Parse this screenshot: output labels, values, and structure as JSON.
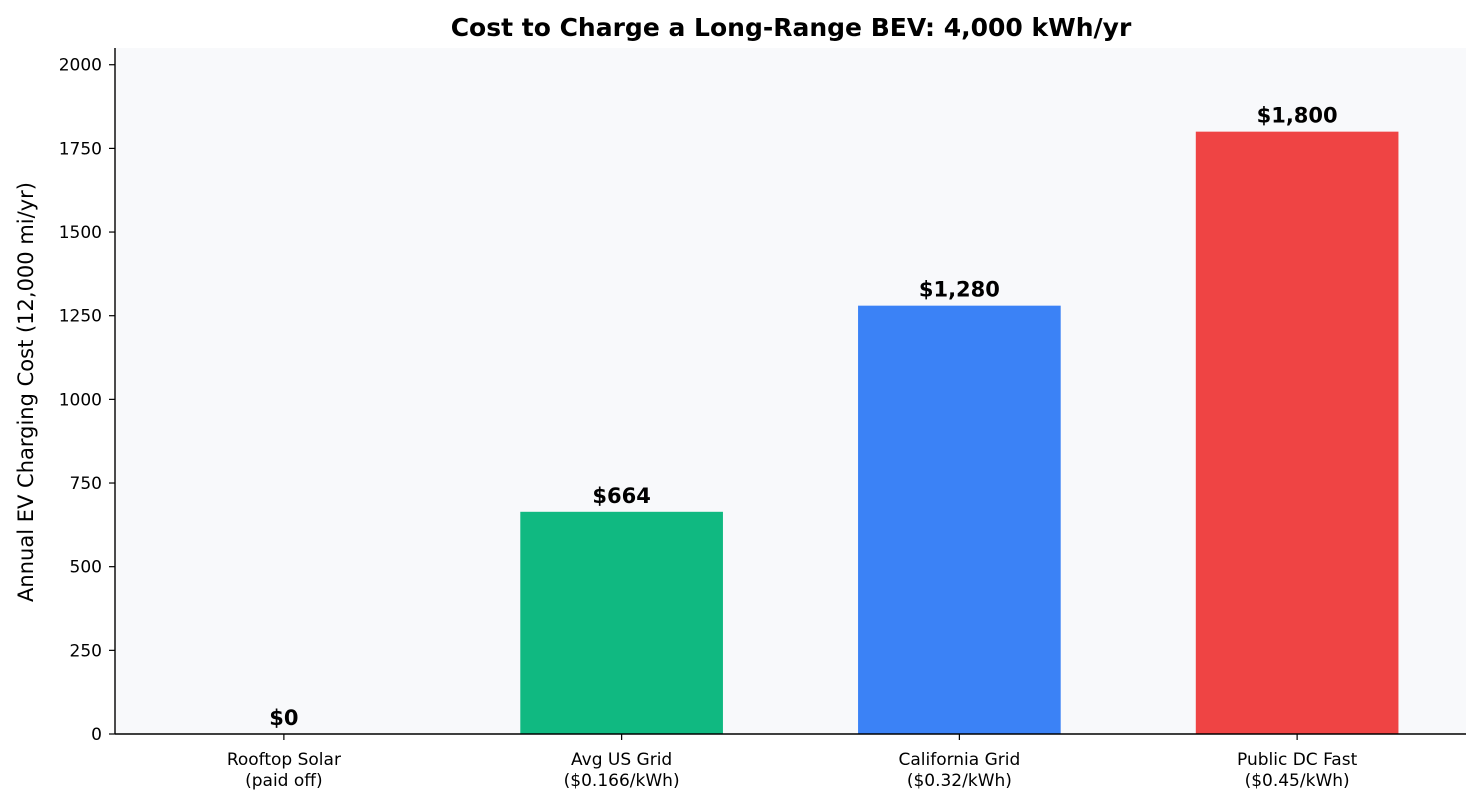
{
  "chart_data": {
    "type": "bar",
    "title": "Cost to Charge a Long-Range BEV: 4,000 kWh/yr",
    "xlabel": "",
    "ylabel": "Annual EV Charging Cost (12,000 mi/yr)",
    "categories": [
      [
        "Rooftop Solar",
        "(paid off)"
      ],
      [
        "Avg US Grid",
        "($0.166/kWh)"
      ],
      [
        "California Grid",
        "($0.32/kWh)"
      ],
      [
        "Public DC Fast",
        "($0.45/kWh)"
      ]
    ],
    "values": [
      0,
      664,
      1280,
      1800
    ],
    "value_labels": [
      "$0",
      "$664",
      "$1,280",
      "$1,800"
    ],
    "colors": [
      "#f59e0b",
      "#10b981",
      "#3b82f6",
      "#ef4444"
    ],
    "ylim": [
      0,
      2050
    ],
    "yticks": [
      0,
      250,
      500,
      750,
      1000,
      1250,
      1500,
      1750,
      2000
    ],
    "ytick_labels": [
      "0",
      "250",
      "500",
      "750",
      "1000",
      "1250",
      "1500",
      "1750",
      "2000"
    ],
    "plot_background": "#f8f9fb",
    "grid": false,
    "legend": "none"
  }
}
